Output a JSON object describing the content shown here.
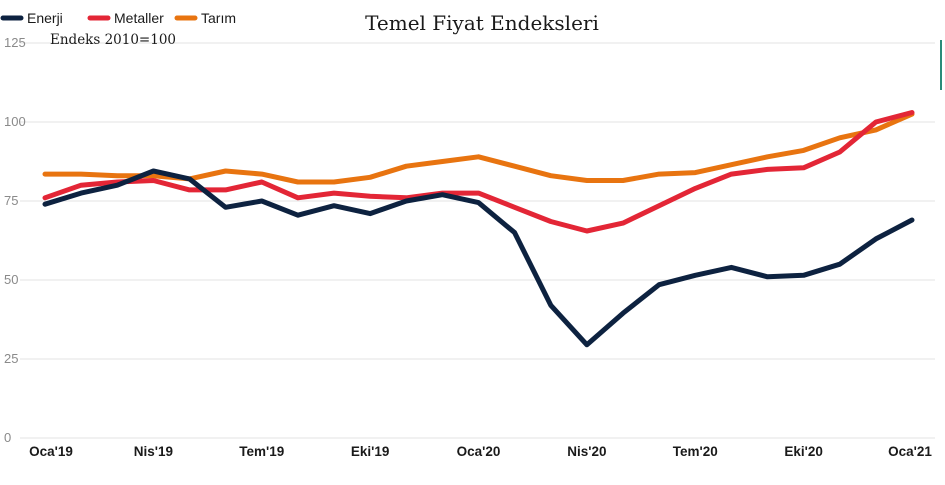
{
  "chart_data": {
    "type": "line",
    "title": "Temel Fiyat Endeksleri",
    "subtitle": "Endeks 2010=100",
    "ylim": [
      0,
      125
    ],
    "yticks": [
      "0",
      "25",
      "50",
      "75",
      "100",
      "125"
    ],
    "grid": true,
    "legend_position": "top-left",
    "x": [
      "Oca'19",
      "Şub'19",
      "Mar'19",
      "Nis'19",
      "May'19",
      "Haz'19",
      "Tem'19",
      "Ağu'19",
      "Eyl'19",
      "Eki'19",
      "Kas'19",
      "Ara'19",
      "Oca'20",
      "Şub'20",
      "Mar'20",
      "Nis'20",
      "May'20",
      "Haz'20",
      "Tem'20",
      "Ağu'20",
      "Eyl'20",
      "Eki'20",
      "Kas'20",
      "Ara'20",
      "Oca'21"
    ],
    "xtick_labels": [
      "Oca'19",
      "Nis'19",
      "Tem'19",
      "Eki'19",
      "Oca'20",
      "Nis'20",
      "Tem'20",
      "Eki'20",
      "Oca'21"
    ],
    "series": [
      {
        "name": "Enerji",
        "color": "#0d2240",
        "values": [
          74,
          77.5,
          80,
          84.5,
          82,
          73,
          75,
          70.5,
          73.5,
          71,
          75,
          77,
          74.5,
          65,
          42,
          29.5,
          39.5,
          48.5,
          51.5,
          54,
          51,
          51.5,
          55,
          63,
          69
        ]
      },
      {
        "name": "Metaller",
        "color": "#e32636",
        "values": [
          76,
          80,
          81,
          81.5,
          78.5,
          78.5,
          81,
          76,
          77.5,
          76.5,
          76,
          77.5,
          77.5,
          73,
          68.5,
          65.5,
          68,
          73.5,
          79,
          83.5,
          85,
          85.5,
          90.5,
          100,
          103
        ]
      },
      {
        "name": "Tarım",
        "color": "#e87410",
        "values": [
          83.5,
          83.5,
          83,
          83,
          82,
          84.5,
          83.5,
          81,
          81,
          82.5,
          86,
          87.5,
          89,
          86,
          83,
          81.5,
          81.5,
          83.5,
          84,
          86.5,
          89,
          91,
          95,
          97.5,
          102.5
        ]
      }
    ]
  }
}
